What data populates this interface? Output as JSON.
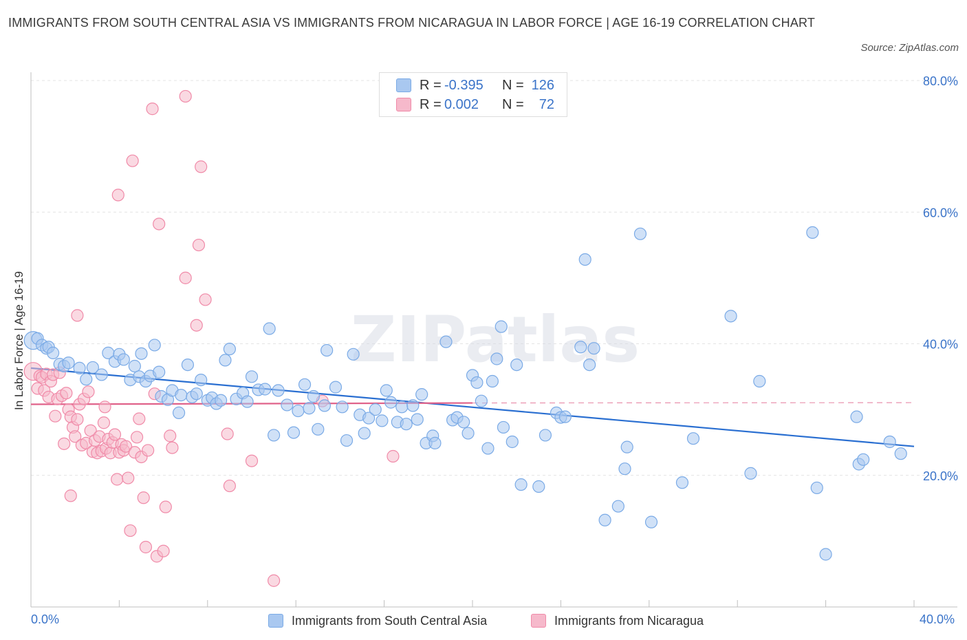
{
  "title": "IMMIGRANTS FROM SOUTH CENTRAL ASIA VS IMMIGRANTS FROM NICARAGUA IN LABOR FORCE | AGE 16-19 CORRELATION CHART",
  "source": "Source: ZipAtlas.com",
  "watermark": "ZIPatlas",
  "legend": {
    "rows": [
      {
        "r_label": "R =",
        "r_value": "-0.395",
        "n_label": "N =",
        "n_value": "126",
        "color": "#a9c8f0"
      },
      {
        "r_label": "R =",
        "r_value": "0.002",
        "n_label": "N =",
        "n_value": "72",
        "color": "#f6b9cb"
      }
    ]
  },
  "bottom_legend": [
    {
      "label": "Immigrants from South Central Asia",
      "color": "#a9c8f0"
    },
    {
      "label": "Immigrants from Nicaragua",
      "color": "#f6b9cb"
    }
  ],
  "axis": {
    "x_min_label": "0.0%",
    "x_max_label": "40.0%",
    "y_label": "In Labor Force | Age 16-19",
    "y_ticks": [
      "20.0%",
      "40.0%",
      "60.0%",
      "80.0%"
    ]
  },
  "chart_data": {
    "type": "scatter",
    "xlim": [
      0,
      40
    ],
    "ylim": [
      0,
      80
    ],
    "y_ticks": [
      20,
      40,
      60,
      80
    ],
    "grid": true,
    "series": [
      {
        "name": "Immigrants from South Central Asia",
        "color": "#7aaae6",
        "fill": "#a9c8f0",
        "trend": {
          "x0": 0,
          "y0": 36.3,
          "x1": 40,
          "y1": 24.4,
          "style": "solid",
          "color": "#2a6fd1"
        },
        "points": [
          [
            0.1,
            40.5
          ],
          [
            0.3,
            40.8
          ],
          [
            0.5,
            39.8
          ],
          [
            0.7,
            39.3
          ],
          [
            0.8,
            39.5
          ],
          [
            1.0,
            38.6
          ],
          [
            1.3,
            36.9
          ],
          [
            1.5,
            36.6
          ],
          [
            1.7,
            37.1
          ],
          [
            2.2,
            36.3
          ],
          [
            2.5,
            34.6
          ],
          [
            2.8,
            36.4
          ],
          [
            3.2,
            35.3
          ],
          [
            3.5,
            38.6
          ],
          [
            3.8,
            37.3
          ],
          [
            4.0,
            38.4
          ],
          [
            4.2,
            37.6
          ],
          [
            4.5,
            34.5
          ],
          [
            4.7,
            36.6
          ],
          [
            4.9,
            35.0
          ],
          [
            5.0,
            38.5
          ],
          [
            5.2,
            34.3
          ],
          [
            5.4,
            35.1
          ],
          [
            5.6,
            39.8
          ],
          [
            5.8,
            35.7
          ],
          [
            5.9,
            32.0
          ],
          [
            6.2,
            31.5
          ],
          [
            6.4,
            32.9
          ],
          [
            6.7,
            29.5
          ],
          [
            6.8,
            32.2
          ],
          [
            7.1,
            36.8
          ],
          [
            7.3,
            31.9
          ],
          [
            7.5,
            32.4
          ],
          [
            7.7,
            34.5
          ],
          [
            8.0,
            31.4
          ],
          [
            8.2,
            31.8
          ],
          [
            8.4,
            30.9
          ],
          [
            8.6,
            31.4
          ],
          [
            8.8,
            37.5
          ],
          [
            9.0,
            39.2
          ],
          [
            9.3,
            31.6
          ],
          [
            9.6,
            32.5
          ],
          [
            9.8,
            31.2
          ],
          [
            10.0,
            35.0
          ],
          [
            10.3,
            33.0
          ],
          [
            10.6,
            33.1
          ],
          [
            10.8,
            42.3
          ],
          [
            11.2,
            32.9
          ],
          [
            11.0,
            26.1
          ],
          [
            11.6,
            30.7
          ],
          [
            11.9,
            26.5
          ],
          [
            12.1,
            29.8
          ],
          [
            12.4,
            33.8
          ],
          [
            12.6,
            30.2
          ],
          [
            12.8,
            32.0
          ],
          [
            13.0,
            27.0
          ],
          [
            13.3,
            30.6
          ],
          [
            13.4,
            39.0
          ],
          [
            13.8,
            33.4
          ],
          [
            14.1,
            30.4
          ],
          [
            14.3,
            25.3
          ],
          [
            14.6,
            38.4
          ],
          [
            14.9,
            29.2
          ],
          [
            15.1,
            26.4
          ],
          [
            15.3,
            28.7
          ],
          [
            15.6,
            30.0
          ],
          [
            15.9,
            28.3
          ],
          [
            16.1,
            32.9
          ],
          [
            16.3,
            31.1
          ],
          [
            16.6,
            28.1
          ],
          [
            16.8,
            30.4
          ],
          [
            17.0,
            27.8
          ],
          [
            17.3,
            30.6
          ],
          [
            17.5,
            28.5
          ],
          [
            17.7,
            32.3
          ],
          [
            17.9,
            24.9
          ],
          [
            18.2,
            26.0
          ],
          [
            18.3,
            24.9
          ],
          [
            18.8,
            40.3
          ],
          [
            19.1,
            28.4
          ],
          [
            19.3,
            28.8
          ],
          [
            19.6,
            28.1
          ],
          [
            19.8,
            26.4
          ],
          [
            20.0,
            35.2
          ],
          [
            20.2,
            34.1
          ],
          [
            20.4,
            31.3
          ],
          [
            20.7,
            24.1
          ],
          [
            20.9,
            34.3
          ],
          [
            21.1,
            37.7
          ],
          [
            21.3,
            42.6
          ],
          [
            21.4,
            27.3
          ],
          [
            21.8,
            25.1
          ],
          [
            22.0,
            36.8
          ],
          [
            22.2,
            18.6
          ],
          [
            23.0,
            18.3
          ],
          [
            23.3,
            26.1
          ],
          [
            23.8,
            29.5
          ],
          [
            24.0,
            28.8
          ],
          [
            24.2,
            28.9
          ],
          [
            24.9,
            39.5
          ],
          [
            25.1,
            52.8
          ],
          [
            25.3,
            36.8
          ],
          [
            25.5,
            39.3
          ],
          [
            26.0,
            13.2
          ],
          [
            26.6,
            15.3
          ],
          [
            26.9,
            21.0
          ],
          [
            27.0,
            24.3
          ],
          [
            27.6,
            56.7
          ],
          [
            28.1,
            12.9
          ],
          [
            29.5,
            18.9
          ],
          [
            30.0,
            25.6
          ],
          [
            31.7,
            44.2
          ],
          [
            32.6,
            20.3
          ],
          [
            33.0,
            34.3
          ],
          [
            35.4,
            56.9
          ],
          [
            35.6,
            18.1
          ],
          [
            36.0,
            8.0
          ],
          [
            37.4,
            28.9
          ],
          [
            37.5,
            21.7
          ],
          [
            37.7,
            22.4
          ],
          [
            38.9,
            25.1
          ],
          [
            39.4,
            23.3
          ]
        ]
      },
      {
        "name": "Immigrants from Nicaragua",
        "color": "#f08aa8",
        "fill": "#f6b9cb",
        "trend": {
          "x0": 0,
          "y0": 30.8,
          "x1": 20.0,
          "y1": 31.0,
          "style": "solid",
          "color": "#e0628a",
          "dashed_extension_to": 40
        },
        "points": [
          [
            0.1,
            35.8
          ],
          [
            0.3,
            33.2
          ],
          [
            0.4,
            35.1
          ],
          [
            0.5,
            34.9
          ],
          [
            0.6,
            32.9
          ],
          [
            0.7,
            35.4
          ],
          [
            0.8,
            31.9
          ],
          [
            0.9,
            34.3
          ],
          [
            1.0,
            35.3
          ],
          [
            1.1,
            29.0
          ],
          [
            1.2,
            31.6
          ],
          [
            1.3,
            35.6
          ],
          [
            1.4,
            32.1
          ],
          [
            1.5,
            24.8
          ],
          [
            1.6,
            32.5
          ],
          [
            1.7,
            30.0
          ],
          [
            1.8,
            28.9
          ],
          [
            1.8,
            16.9
          ],
          [
            1.9,
            27.3
          ],
          [
            2.0,
            25.9
          ],
          [
            2.1,
            44.3
          ],
          [
            2.1,
            28.5
          ],
          [
            2.2,
            30.8
          ],
          [
            2.3,
            24.6
          ],
          [
            2.4,
            31.6
          ],
          [
            2.5,
            24.9
          ],
          [
            2.6,
            32.7
          ],
          [
            2.7,
            26.8
          ],
          [
            2.8,
            23.6
          ],
          [
            2.9,
            25.3
          ],
          [
            3.0,
            23.4
          ],
          [
            3.1,
            25.9
          ],
          [
            3.2,
            23.7
          ],
          [
            3.3,
            28.0
          ],
          [
            3.35,
            30.4
          ],
          [
            3.4,
            24.1
          ],
          [
            3.5,
            25.5
          ],
          [
            3.6,
            23.4
          ],
          [
            3.7,
            25.0
          ],
          [
            3.8,
            26.2
          ],
          [
            3.9,
            19.4
          ],
          [
            3.95,
            62.6
          ],
          [
            4.0,
            23.5
          ],
          [
            4.1,
            24.7
          ],
          [
            4.2,
            23.8
          ],
          [
            4.3,
            24.4
          ],
          [
            4.4,
            19.6
          ],
          [
            4.5,
            11.6
          ],
          [
            4.6,
            67.8
          ],
          [
            4.7,
            23.5
          ],
          [
            4.8,
            25.8
          ],
          [
            4.9,
            28.6
          ],
          [
            5.0,
            22.8
          ],
          [
            5.1,
            16.6
          ],
          [
            5.2,
            9.1
          ],
          [
            5.3,
            23.8
          ],
          [
            5.5,
            75.7
          ],
          [
            5.6,
            32.4
          ],
          [
            5.7,
            7.7
          ],
          [
            5.8,
            58.2
          ],
          [
            6.0,
            8.5
          ],
          [
            6.1,
            15.2
          ],
          [
            6.3,
            26.0
          ],
          [
            6.4,
            24.2
          ],
          [
            7.0,
            77.6
          ],
          [
            7.5,
            42.8
          ],
          [
            7.6,
            55.0
          ],
          [
            7.7,
            66.9
          ],
          [
            7.9,
            46.7
          ],
          [
            7.0,
            50.0
          ],
          [
            8.9,
            26.3
          ],
          [
            9.0,
            18.4
          ],
          [
            10.0,
            22.2
          ],
          [
            13.2,
            31.3
          ],
          [
            16.4,
            22.9
          ],
          [
            11.0,
            4.0
          ]
        ]
      }
    ]
  }
}
